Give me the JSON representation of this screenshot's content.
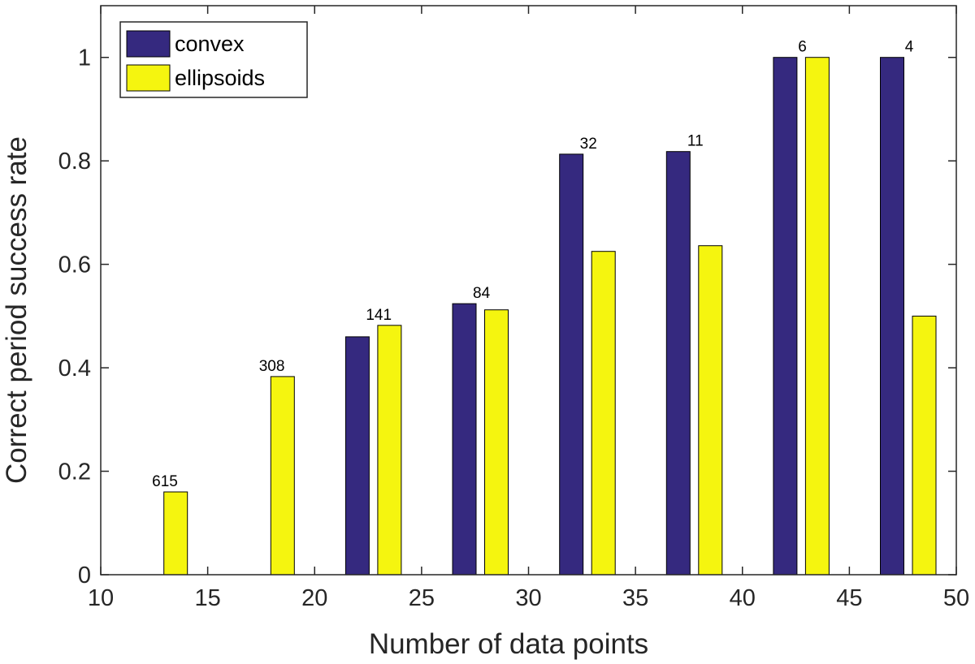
{
  "chart_data": {
    "type": "bar",
    "xlabel": "Number of data points",
    "ylabel": "Correct period success rate",
    "xlim": [
      10,
      50
    ],
    "ylim": [
      0,
      1.1
    ],
    "xticks": [
      "10",
      "15",
      "20",
      "25",
      "30",
      "35",
      "40",
      "45",
      "50"
    ],
    "yticks": [
      "0",
      "0.2",
      "0.4",
      "0.6",
      "0.8",
      "1"
    ],
    "bar_width": 1.1,
    "legend_position": "top-left",
    "series": [
      {
        "name": "convex",
        "color": "#35297f",
        "x": [
          13,
          18,
          22,
          27,
          32,
          37,
          42,
          47
        ],
        "values": [
          0,
          0,
          0.46,
          0.524,
          0.813,
          0.818,
          1.0,
          1.0
        ]
      },
      {
        "name": "ellipsoids",
        "color": "#f5f50f",
        "x": [
          13.5,
          18.5,
          23.5,
          28.5,
          33.5,
          38.5,
          43.5,
          48.5
        ],
        "values": [
          0.16,
          0.383,
          0.482,
          0.512,
          0.625,
          0.636,
          1.0,
          0.5
        ]
      }
    ],
    "annotations": [
      {
        "text": "615",
        "x": 13.0,
        "y": 0.16
      },
      {
        "text": "308",
        "x": 18.0,
        "y": 0.383
      },
      {
        "text": "141",
        "x": 23.0,
        "y": 0.482
      },
      {
        "text": "84",
        "x": 27.8,
        "y": 0.524
      },
      {
        "text": "32",
        "x": 32.8,
        "y": 0.813
      },
      {
        "text": "11",
        "x": 37.8,
        "y": 0.818
      },
      {
        "text": "6",
        "x": 42.8,
        "y": 1.0
      },
      {
        "text": "4",
        "x": 47.8,
        "y": 1.0
      }
    ]
  }
}
